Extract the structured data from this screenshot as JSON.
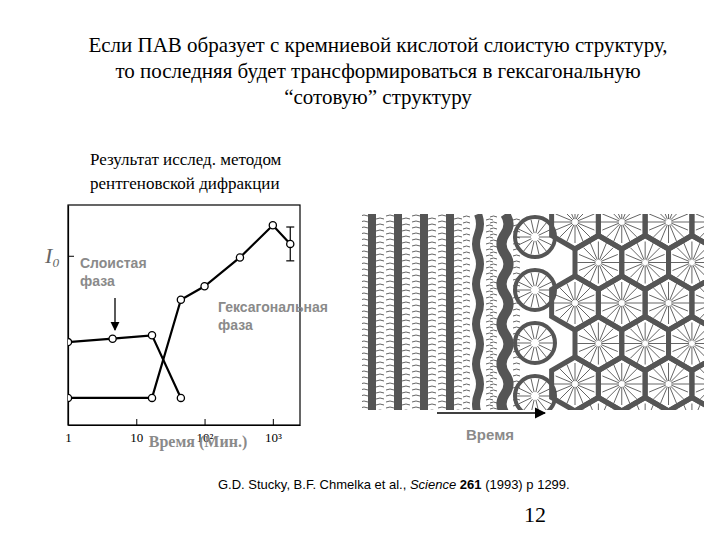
{
  "slide": {
    "title": [
      "Если ПАВ образует с кремниевой кислотой слоистую структуру,",
      "то последняя будет трансформироваться в гексагональную",
      "“сотовую” структуру"
    ],
    "caption": [
      "Результат исслед. методом",
      "рентгеновской дифракции"
    ],
    "diagram_label": "Время",
    "citation": {
      "authors": "G.D. Stucky, B.F. Chmelka et al.,",
      "journal": "Science",
      "volume": "261",
      "rest": "(1993) p 1299."
    },
    "page": 12
  },
  "chart_data": {
    "type": "line",
    "log": "x",
    "xlabel": "Время (Мин.)",
    "xlim": [
      1,
      2500
    ],
    "xticks": [
      1,
      10,
      {
        "value": 100,
        "label": "10²"
      },
      {
        "value": 1000,
        "label": "10³"
      }
    ],
    "ylim": [
      0,
      1.3
    ],
    "yticks": [
      {
        "value": 1,
        "label": "I₀"
      }
    ],
    "marker": "circle",
    "series": [
      {
        "name": "Слоистая фаза",
        "color": "#000000",
        "x": [
          1,
          4.5,
          17,
          45
        ],
        "values": [
          0.49,
          0.51,
          0.53,
          0.16
        ]
      },
      {
        "name": "Гексагональная фаза",
        "color": "#000000",
        "x": [
          1,
          17,
          45,
          100,
          330,
          1000,
          1800
        ],
        "values": [
          0.16,
          0.16,
          0.74,
          0.82,
          0.99,
          1.18,
          1.07
        ],
        "errors": [
          null,
          null,
          null,
          null,
          null,
          null,
          0.1
        ]
      }
    ]
  }
}
